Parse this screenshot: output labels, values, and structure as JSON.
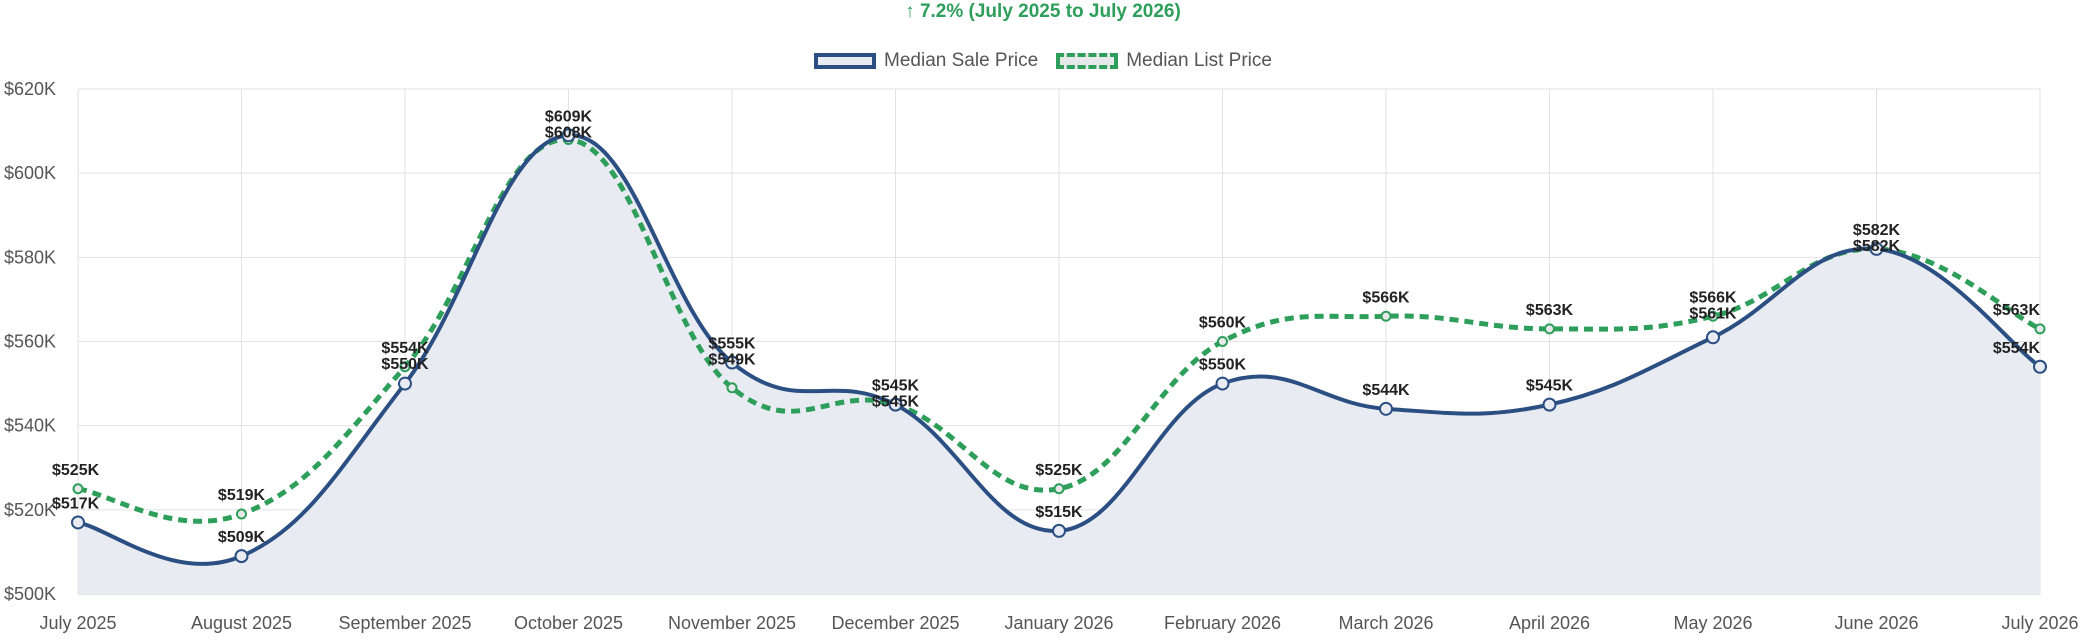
{
  "chart_data": {
    "type": "line",
    "subtitle": "↑ 7.2% (July 2025 to July 2026)",
    "categories": [
      "July 2025",
      "August 2025",
      "September 2025",
      "October 2025",
      "November 2025",
      "December 2025",
      "January 2026",
      "February 2026",
      "March 2026",
      "April 2026",
      "May 2026",
      "June 2026",
      "July 2026"
    ],
    "series": [
      {
        "name": "Median Sale Price",
        "color": "#2b4f82",
        "values": [
          517,
          509,
          550,
          609,
          555,
          545,
          515,
          550,
          544,
          545,
          561,
          582,
          554
        ],
        "labels": [
          "$517K",
          "$509K",
          "$550K",
          "$609K",
          "$555K",
          "$545K",
          "$515K",
          "$550K",
          "$544K",
          "$545K",
          "$561K",
          "$582K",
          "$554K"
        ]
      },
      {
        "name": "Median List Price",
        "color": "#2e9e5b",
        "values": [
          525,
          519,
          554,
          608,
          549,
          545,
          525,
          560,
          566,
          563,
          566,
          582,
          563
        ],
        "labels": [
          "$525K",
          "$519K",
          "$554K",
          "$608K",
          "$549K",
          "$545K",
          "$525K",
          "$560K",
          "$566K",
          "$563K",
          "$566K",
          "$582K",
          "$563K"
        ]
      }
    ],
    "y_ticks": [
      "$500K",
      "$520K",
      "$540K",
      "$560K",
      "$580K",
      "$600K",
      "$620K"
    ],
    "ylim": [
      500,
      620
    ],
    "grid": true,
    "legend_position": "top-center"
  }
}
